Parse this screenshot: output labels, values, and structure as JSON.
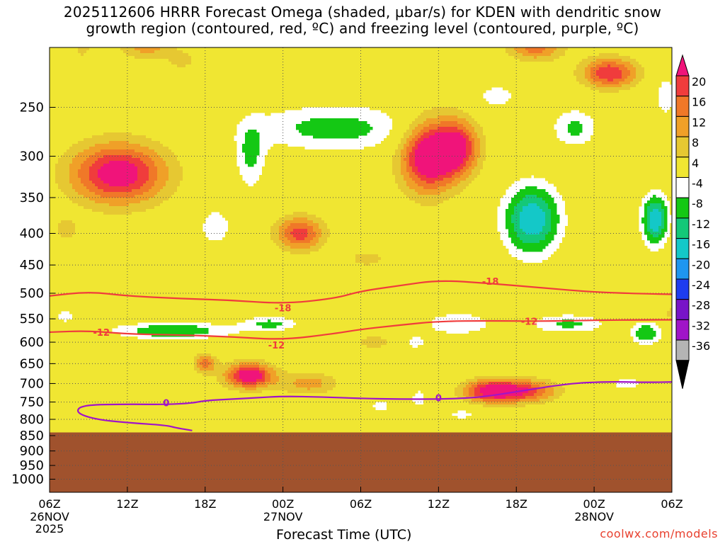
{
  "title": {
    "line1": "2025112606 HRRR Forecast Omega (shaded, µbar/s) for KDEN with dendritic snow",
    "line2": "growth region (contoured, red, ºC) and freezing level (contoured, purple, ºC)"
  },
  "credit": "coolwx.com/models",
  "chart_data": {
    "type": "heatmap",
    "xlabel": "Forecast Time (UTC)",
    "ylabel": "",
    "x_ticks": [
      {
        "hour": 0,
        "label": "06Z",
        "sub": [
          "26NOV",
          "2025"
        ]
      },
      {
        "hour": 6,
        "label": "12Z",
        "sub": []
      },
      {
        "hour": 12,
        "label": "18Z",
        "sub": []
      },
      {
        "hour": 18,
        "label": "00Z",
        "sub": [
          "27NOV"
        ]
      },
      {
        "hour": 24,
        "label": "06Z",
        "sub": []
      },
      {
        "hour": 30,
        "label": "12Z",
        "sub": []
      },
      {
        "hour": 36,
        "label": "18Z",
        "sub": []
      },
      {
        "hour": 42,
        "label": "00Z",
        "sub": [
          "28NOV"
        ]
      },
      {
        "hour": 48,
        "label": "06Z",
        "sub": []
      }
    ],
    "xlim": [
      0,
      48
    ],
    "y_ticks": [
      250,
      300,
      350,
      400,
      450,
      500,
      550,
      600,
      650,
      700,
      750,
      800,
      850,
      900,
      950,
      1000
    ],
    "ylim_hpa": [
      200,
      1050
    ],
    "y_scale": "log-pressure, inverted",
    "surface_pressure_hpa": 840,
    "colorbar": {
      "levels": [
        20,
        16,
        12,
        8,
        4,
        -4,
        -8,
        -12,
        -16,
        -20,
        -24,
        -28,
        -32,
        -36
      ],
      "colors": [
        "#f0147a",
        "#f03c3c",
        "#f07828",
        "#f0a028",
        "#e6c832",
        "#f0e632",
        "#ffffff",
        "#14c814",
        "#14c878",
        "#14c8c8",
        "#1e96f0",
        "#1e3cf0",
        "#7814c8",
        "#a014c8",
        "#b4b4b4",
        "#000000"
      ]
    },
    "colors": {
      "ground": "#a0522d",
      "dgz_contour": "#f03c3c",
      "freezing_contour": "#a014c8"
    },
    "contours": [
      {
        "name": "-18",
        "color": "#f03c3c",
        "labels": [
          {
            "hour": 18,
            "hpa": 528
          },
          {
            "hour": 34,
            "hpa": 478
          }
        ],
        "points": [
          [
            0,
            505
          ],
          [
            3,
            497
          ],
          [
            6,
            505
          ],
          [
            10,
            510
          ],
          [
            14,
            513
          ],
          [
            18,
            520
          ],
          [
            22,
            510
          ],
          [
            24,
            496
          ],
          [
            27,
            486
          ],
          [
            30,
            476
          ],
          [
            34,
            482
          ],
          [
            38,
            490
          ],
          [
            42,
            498
          ],
          [
            46,
            501
          ],
          [
            48,
            502
          ]
        ]
      },
      {
        "name": "-12",
        "color": "#f03c3c",
        "labels": [
          {
            "hour": 4,
            "hpa": 578
          },
          {
            "hour": 17.5,
            "hpa": 606
          },
          {
            "hour": 37,
            "hpa": 555
          }
        ],
        "points": [
          [
            0,
            578
          ],
          [
            3,
            575
          ],
          [
            6,
            582
          ],
          [
            10,
            584
          ],
          [
            14,
            588
          ],
          [
            18,
            595
          ],
          [
            22,
            581
          ],
          [
            24,
            572
          ],
          [
            27,
            563
          ],
          [
            30,
            555
          ],
          [
            34,
            554
          ],
          [
            38,
            555
          ],
          [
            42,
            553
          ],
          [
            46,
            552
          ],
          [
            48,
            552
          ]
        ]
      },
      {
        "name": "0",
        "color": "#a014c8",
        "labels": [
          {
            "hour": 9,
            "hpa": 752
          },
          {
            "hour": 30,
            "hpa": 738
          }
        ],
        "points": [
          [
            11,
            834
          ],
          [
            9.8,
            826
          ],
          [
            9,
            818
          ],
          [
            6,
            810
          ],
          [
            3.5,
            800
          ],
          [
            2,
            780
          ],
          [
            2.5,
            758
          ],
          [
            6,
            756
          ],
          [
            9,
            757
          ],
          [
            11,
            753
          ],
          [
            12,
            746
          ],
          [
            14,
            742
          ],
          [
            16,
            738
          ],
          [
            18,
            734
          ],
          [
            21,
            736
          ],
          [
            24,
            740
          ],
          [
            27,
            742
          ],
          [
            30,
            742
          ],
          [
            33,
            738
          ],
          [
            36,
            722
          ],
          [
            40,
            700
          ],
          [
            43,
            695
          ],
          [
            46,
            697
          ],
          [
            48,
            696
          ]
        ]
      }
    ],
    "omega_features": [
      {
        "hour": 5.3,
        "hpa": 320,
        "hw": 2.6,
        "hh": 8.0,
        "peak": 24
      },
      {
        "hour": 1.3,
        "hpa": 395,
        "hw": 0.7,
        "hh": 3.5,
        "peak": 6
      },
      {
        "hour": 2.6,
        "hpa": 200,
        "hw": 0.6,
        "hh": 4.0,
        "peak": 5
      },
      {
        "hour": 7.5,
        "hpa": 200,
        "hw": 1.5,
        "hh": 3.0,
        "peak": 10
      },
      {
        "hour": 10.2,
        "hpa": 210,
        "hw": 0.8,
        "hh": 2.5,
        "peak": 6
      },
      {
        "hour": 1.2,
        "hpa": 545,
        "hw": 0.9,
        "hh": 2.5,
        "peak": -5
      },
      {
        "hour": 9.5,
        "hpa": 575,
        "hw": 3.2,
        "hh": 2.2,
        "peak": -12
      },
      {
        "hour": 12.8,
        "hpa": 390,
        "hw": 0.9,
        "hh": 5.0,
        "peak": -7
      },
      {
        "hour": 15.5,
        "hpa": 300,
        "hw": 0.8,
        "hh": 8.5,
        "peak": -9
      },
      {
        "hour": 17.0,
        "hpa": 560,
        "hw": 1.5,
        "hh": 2.0,
        "peak": -9
      },
      {
        "hour": 15.4,
        "hpa": 680,
        "hw": 1.3,
        "hh": 3.3,
        "peak": 25
      },
      {
        "hour": 12.0,
        "hpa": 650,
        "hw": 0.6,
        "hh": 2.5,
        "peak": 14
      },
      {
        "hour": 19.3,
        "hpa": 400,
        "hw": 1.3,
        "hh": 4.5,
        "peak": 18
      },
      {
        "hour": 20.0,
        "hpa": 700,
        "hw": 1.6,
        "hh": 3.0,
        "peak": 10
      },
      {
        "hour": 22.0,
        "hpa": 270,
        "hw": 4.5,
        "hh": 6.0,
        "peak": -10
      },
      {
        "hour": 24.5,
        "hpa": 440,
        "hw": 1.5,
        "hh": 3.0,
        "peak": 5
      },
      {
        "hour": 25.0,
        "hpa": 600,
        "hw": 1.2,
        "hh": 2.0,
        "peak": 6
      },
      {
        "hour": 29.2,
        "hpa": 300,
        "hw": 1.5,
        "hh": 9.5,
        "peak": 26
      },
      {
        "hour": 31.5,
        "hpa": 290,
        "hw": 1.2,
        "hh": 7.5,
        "peak": 20
      },
      {
        "hour": 31.5,
        "hpa": 560,
        "hw": 1.8,
        "hh": 3.0,
        "peak": -8
      },
      {
        "hour": 28.5,
        "hpa": 740,
        "hw": 0.5,
        "hh": 3.0,
        "peak": -6
      },
      {
        "hour": 25.5,
        "hpa": 760,
        "hw": 0.6,
        "hh": 2.0,
        "peak": -6
      },
      {
        "hour": 31.8,
        "hpa": 785,
        "hw": 0.8,
        "hh": 1.2,
        "peak": -7
      },
      {
        "hour": 34.0,
        "hpa": 720,
        "hw": 1.5,
        "hh": 3.0,
        "peak": 22
      },
      {
        "hour": 36.8,
        "hpa": 720,
        "hw": 1.7,
        "hh": 3.0,
        "peak": 17
      },
      {
        "hour": 37.5,
        "hpa": 200,
        "hw": 1.5,
        "hh": 3.5,
        "peak": 14
      },
      {
        "hour": 37.2,
        "hpa": 380,
        "hw": 1.5,
        "hh": 9.0,
        "peak": -20
      },
      {
        "hour": 40.5,
        "hpa": 270,
        "hw": 1.2,
        "hh": 5.0,
        "peak": -9
      },
      {
        "hour": 40.0,
        "hpa": 560,
        "hw": 2.0,
        "hh": 2.5,
        "peak": -9
      },
      {
        "hour": 43.2,
        "hpa": 220,
        "hw": 1.5,
        "hh": 4.0,
        "peak": 20
      },
      {
        "hour": 46.7,
        "hpa": 380,
        "hw": 0.7,
        "hh": 6.5,
        "peak": -20
      },
      {
        "hour": 47.5,
        "hpa": 240,
        "hw": 0.6,
        "hh": 5.5,
        "peak": -7
      },
      {
        "hour": 44.5,
        "hpa": 700,
        "hw": 1.0,
        "hh": 2.0,
        "peak": -6
      },
      {
        "hour": 46.0,
        "hpa": 580,
        "hw": 0.8,
        "hh": 3.0,
        "peak": -12
      },
      {
        "hour": 48.0,
        "hpa": 540,
        "hw": 0.5,
        "hh": 2.5,
        "peak": 5
      },
      {
        "hour": 34.5,
        "hpa": 240,
        "hw": 1.2,
        "hh": 3.5,
        "peak": -6
      },
      {
        "hour": 28.2,
        "hpa": 600,
        "hw": 0.6,
        "hh": 2.0,
        "peak": -6
      }
    ]
  }
}
